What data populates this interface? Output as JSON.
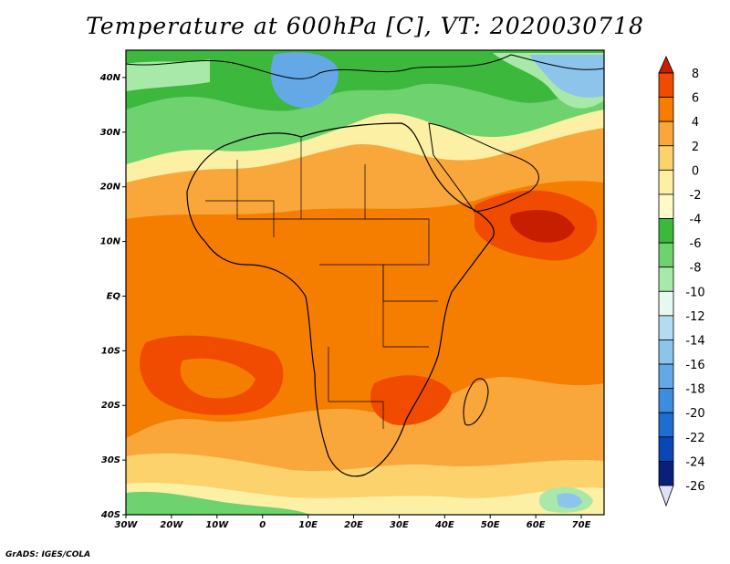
{
  "title": "Temperature at 600hPa [C], VT: 2020030718",
  "credit": "GrADS: IGES/COLA",
  "map": {
    "lon_ticks": [
      "30W",
      "20W",
      "10W",
      "0",
      "10E",
      "20E",
      "30E",
      "40E",
      "50E",
      "60E",
      "70E"
    ],
    "lat_ticks": [
      "40N",
      "30N",
      "20N",
      "10N",
      "EQ",
      "10S",
      "20S",
      "30S",
      "40S"
    ],
    "lon_range": [
      -30,
      75
    ],
    "lat_range": [
      -40,
      45
    ]
  },
  "colorbar": {
    "labels": [
      "8",
      "6",
      "4",
      "2",
      "0",
      "-2",
      "-4",
      "-6",
      "-8",
      "-10",
      "-12",
      "-14",
      "-16",
      "-18",
      "-20",
      "-22",
      "-24",
      "-26"
    ],
    "colors": [
      "#c81e00",
      "#f04b00",
      "#f57d00",
      "#f9a73a",
      "#fbd26c",
      "#fcf0a4",
      "#fffac8",
      "#3cb83c",
      "#6ed26e",
      "#a8e8a8",
      "#e6f8f0",
      "#b4dcf0",
      "#8cc4ec",
      "#64a8e6",
      "#3c8ce0",
      "#1e6ed2",
      "#0a46b4",
      "#08207a",
      "#e0e0f8"
    ]
  }
}
